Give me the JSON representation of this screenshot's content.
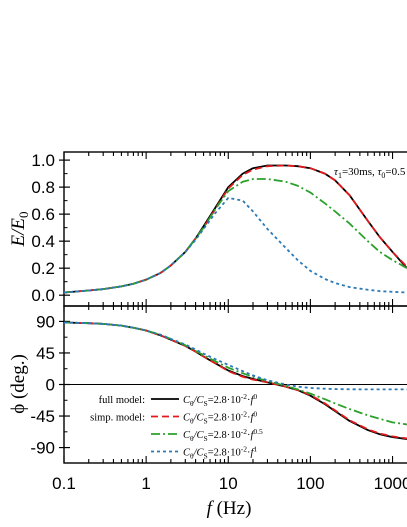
{
  "chart_data": [
    {
      "type": "line",
      "panel": "top",
      "xlabel_italic": "f",
      "xlabel_rest": " (Hz)",
      "ylabel_main": "E/E",
      "ylabel_sub": "0",
      "xscale": "log",
      "xlim": [
        0.1,
        1500
      ],
      "ylim": [
        -0.08,
        1.06
      ],
      "yticks": [
        "0.0",
        "0.2",
        "0.4",
        "0.6",
        "0.8",
        "1.0"
      ],
      "xticks": [
        "0.1",
        "1",
        "10",
        "100",
        "1000"
      ],
      "annotation": "τ1=30ms, τ0=0.5",
      "annotation_parts": [
        "τ",
        "1",
        "=30ms, ",
        "τ",
        "0",
        "=0.5"
      ],
      "x": [
        0.1,
        0.2,
        0.3,
        0.5,
        0.7,
        1,
        1.5,
        2,
        3,
        4,
        5,
        7,
        10,
        15,
        20,
        30,
        50,
        70,
        100,
        150,
        200,
        300,
        500,
        700,
        1000,
        1500
      ],
      "series": [
        {
          "key": "full_p0",
          "color": "#000000",
          "dash": "",
          "values": [
            0.02,
            0.035,
            0.045,
            0.065,
            0.085,
            0.115,
            0.165,
            0.22,
            0.32,
            0.42,
            0.51,
            0.65,
            0.8,
            0.9,
            0.94,
            0.96,
            0.96,
            0.955,
            0.94,
            0.9,
            0.85,
            0.74,
            0.55,
            0.43,
            0.32,
            0.2
          ]
        },
        {
          "key": "simp_p0",
          "color": "#e31a1c",
          "dash": "7,4",
          "values": [
            0.02,
            0.035,
            0.045,
            0.065,
            0.085,
            0.115,
            0.165,
            0.22,
            0.32,
            0.42,
            0.5,
            0.64,
            0.79,
            0.89,
            0.93,
            0.955,
            0.96,
            0.955,
            0.94,
            0.9,
            0.85,
            0.74,
            0.55,
            0.43,
            0.32,
            0.21
          ]
        },
        {
          "key": "simp_p05",
          "color": "#2ca02c",
          "dash": "9,3,2,3",
          "values": [
            0.02,
            0.035,
            0.045,
            0.065,
            0.085,
            0.115,
            0.165,
            0.22,
            0.32,
            0.42,
            0.5,
            0.64,
            0.77,
            0.84,
            0.86,
            0.86,
            0.84,
            0.81,
            0.76,
            0.68,
            0.62,
            0.53,
            0.4,
            0.32,
            0.26,
            0.2
          ]
        },
        {
          "key": "simp_p1",
          "color": "#2a7ab8",
          "dash": "3,3",
          "values": [
            0.02,
            0.035,
            0.045,
            0.065,
            0.085,
            0.115,
            0.165,
            0.22,
            0.32,
            0.41,
            0.49,
            0.61,
            0.72,
            0.7,
            0.62,
            0.49,
            0.35,
            0.26,
            0.18,
            0.12,
            0.09,
            0.06,
            0.04,
            0.03,
            0.025,
            0.02
          ]
        }
      ]
    },
    {
      "type": "line",
      "panel": "bottom",
      "xlabel_italic": "f",
      "xlabel_rest": " (Hz)",
      "ylabel": "ϕ (deg.)",
      "xscale": "log",
      "xlim": [
        0.1,
        1500
      ],
      "ylim": [
        -112,
        112
      ],
      "yticks": [
        "90",
        "45",
        "0",
        "-45",
        "-90"
      ],
      "ytick_values": [
        90,
        45,
        0,
        -45,
        -90
      ],
      "xticks": [
        "0.1",
        "1",
        "10",
        "100",
        "1000"
      ],
      "x": [
        0.1,
        0.2,
        0.3,
        0.5,
        0.7,
        1,
        1.5,
        2,
        3,
        4,
        5,
        7,
        10,
        15,
        20,
        30,
        50,
        70,
        100,
        150,
        200,
        300,
        500,
        700,
        1000,
        1500
      ],
      "series": [
        {
          "key": "full_p0",
          "color": "#000000",
          "dash": "",
          "values": [
            88.5,
            87.5,
            86.5,
            84,
            81,
            77,
            70,
            64,
            55,
            47,
            40,
            30,
            20,
            12,
            8,
            3,
            -3,
            -8,
            -16,
            -28,
            -38,
            -52,
            -65,
            -71,
            -75,
            -78
          ]
        },
        {
          "key": "simp_p0",
          "color": "#e31a1c",
          "dash": "7,4",
          "values": [
            88.5,
            87.5,
            86.5,
            84,
            81,
            77,
            70,
            64,
            55,
            47,
            40,
            30,
            19,
            11,
            7,
            3,
            -3,
            -8,
            -15,
            -27,
            -37,
            -51,
            -64,
            -70,
            -74,
            -77
          ]
        },
        {
          "key": "simp_p05",
          "color": "#2ca02c",
          "dash": "9,3,2,3",
          "values": [
            88.5,
            87.5,
            86.5,
            84,
            81,
            77,
            71,
            65,
            56,
            48,
            42,
            33,
            24,
            16,
            11,
            5,
            -2,
            -7,
            -13,
            -21,
            -27,
            -35,
            -44,
            -49,
            -54,
            -57
          ]
        },
        {
          "key": "simp_p1",
          "color": "#2a7ab8",
          "dash": "3,3",
          "values": [
            88.5,
            87.5,
            86.5,
            84,
            81,
            77,
            71,
            65,
            57,
            50,
            44,
            36,
            28,
            19,
            13,
            6,
            0,
            -3,
            -5,
            -6,
            -6.5,
            -6.8,
            -7,
            -7,
            -7,
            -7
          ]
        }
      ],
      "legend": [
        {
          "series": "full_p0",
          "group_label": "full model:",
          "text": "C0/CS=2.8·10-2·f0",
          "parts": [
            "C",
            "θ",
            "/C",
            "S",
            "=2.8·10",
            "-2",
            "·",
            "f",
            "0"
          ]
        },
        {
          "series": "simp_p0",
          "group_label": "simp. model:",
          "text": "C0/CS=2.8·10-2·f0",
          "parts": [
            "C",
            "θ",
            "/C",
            "S",
            "=2.8·10",
            "-2",
            "·",
            "f",
            "0"
          ]
        },
        {
          "series": "simp_p05",
          "group_label": "",
          "text": "C0/CS=2.8·10-2·f0.5",
          "parts": [
            "C",
            "θ",
            "/C",
            "S",
            "=2.8·10",
            "-2",
            "·",
            "f",
            "0.5"
          ]
        },
        {
          "series": "simp_p1",
          "group_label": "",
          "text": "C0/CS=2.8·10-2·f1",
          "parts": [
            "C",
            "θ",
            "/C",
            "S",
            "=2.8·10",
            "-2",
            "·",
            "f",
            "1"
          ]
        }
      ],
      "legend_placement": "bottom-left, inside"
    }
  ]
}
